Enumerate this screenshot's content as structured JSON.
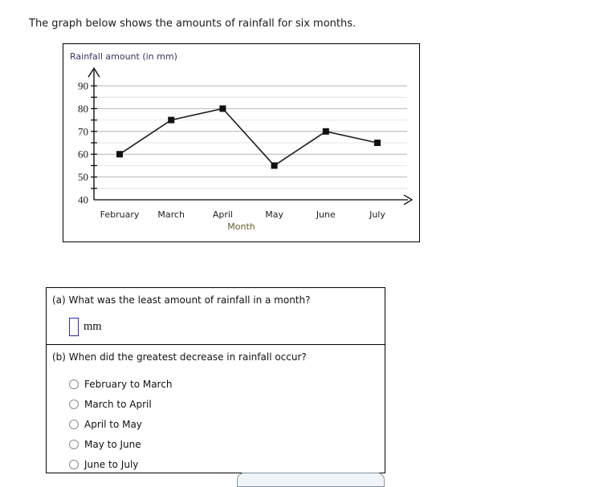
{
  "page": {
    "title": "The graph below shows the amounts of rainfall for six months."
  },
  "chart_data": {
    "type": "line",
    "title": "Rainfall amount (in mm)",
    "xlabel": "Month",
    "categories": [
      "February",
      "March",
      "April",
      "May",
      "June",
      "July"
    ],
    "values": [
      60,
      75,
      80,
      55,
      70,
      65
    ],
    "ylim": [
      40,
      95
    ],
    "ytick_labels": [
      90,
      80,
      70,
      60,
      50,
      40
    ],
    "minor_tick_step": 5,
    "major_tick_step": 10,
    "grid": true,
    "legend": "none",
    "marker": "filled-square",
    "colors": {
      "line": "#1a1a1a",
      "marker": "#111111",
      "major_grid": "#b4b4b4",
      "minor_grid": "#e4e4e4",
      "axis": "#000000",
      "title": "#3d2f63",
      "xlabel": "#5f5f2d",
      "tick_label": "#1a1a1a"
    }
  },
  "questions": {
    "a": {
      "label": "(a) What was the least amount of rainfall in a month?",
      "input_value": "",
      "unit": "mm"
    },
    "b": {
      "label": "(b) When did the greatest decrease in rainfall occur?",
      "options": [
        {
          "label": "February to March",
          "selected": false
        },
        {
          "label": "March to April",
          "selected": false
        },
        {
          "label": "April to May",
          "selected": false
        },
        {
          "label": "May to June",
          "selected": false
        },
        {
          "label": "June to July",
          "selected": false
        }
      ]
    }
  }
}
